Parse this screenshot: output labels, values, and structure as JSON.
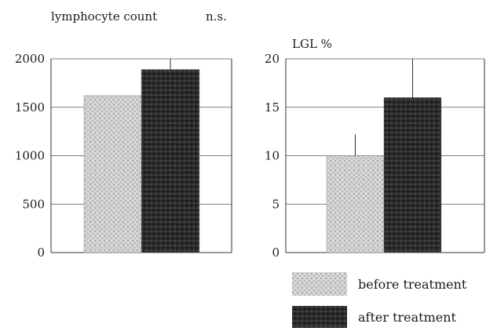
{
  "chart_data": [
    {
      "type": "bar",
      "title": "lymphocyte count",
      "annotation": "n.s.",
      "categories": [
        "before treatment",
        "after treatment"
      ],
      "values": [
        1620,
        1890
      ],
      "errors": [
        1620,
        2000
      ],
      "ylim": [
        0,
        2000
      ],
      "yticks": [
        "0",
        "500",
        "1000",
        "1500",
        "2000"
      ],
      "ytick_values": [
        0,
        500,
        1000,
        1500,
        2000
      ],
      "grid": true
    },
    {
      "type": "bar",
      "title": "LGL %",
      "categories": [
        "before treatment",
        "after treatment"
      ],
      "values": [
        10,
        16
      ],
      "errors": [
        12.2,
        20
      ],
      "ylim": [
        0,
        20
      ],
      "yticks": [
        "0",
        "5",
        "10",
        "15",
        "20"
      ],
      "ytick_values": [
        0,
        5,
        10,
        15,
        20
      ],
      "grid": true
    }
  ],
  "legend": {
    "placement": "bottom-right",
    "items": [
      {
        "label": "before treatment",
        "pattern": "light-stipple"
      },
      {
        "label": "after treatment",
        "pattern": "dark-stipple"
      }
    ]
  },
  "colors": {
    "before_treatment_fill": "#cfcfcf",
    "after_treatment_fill": "#2b2b2b",
    "axis": "#333333"
  }
}
